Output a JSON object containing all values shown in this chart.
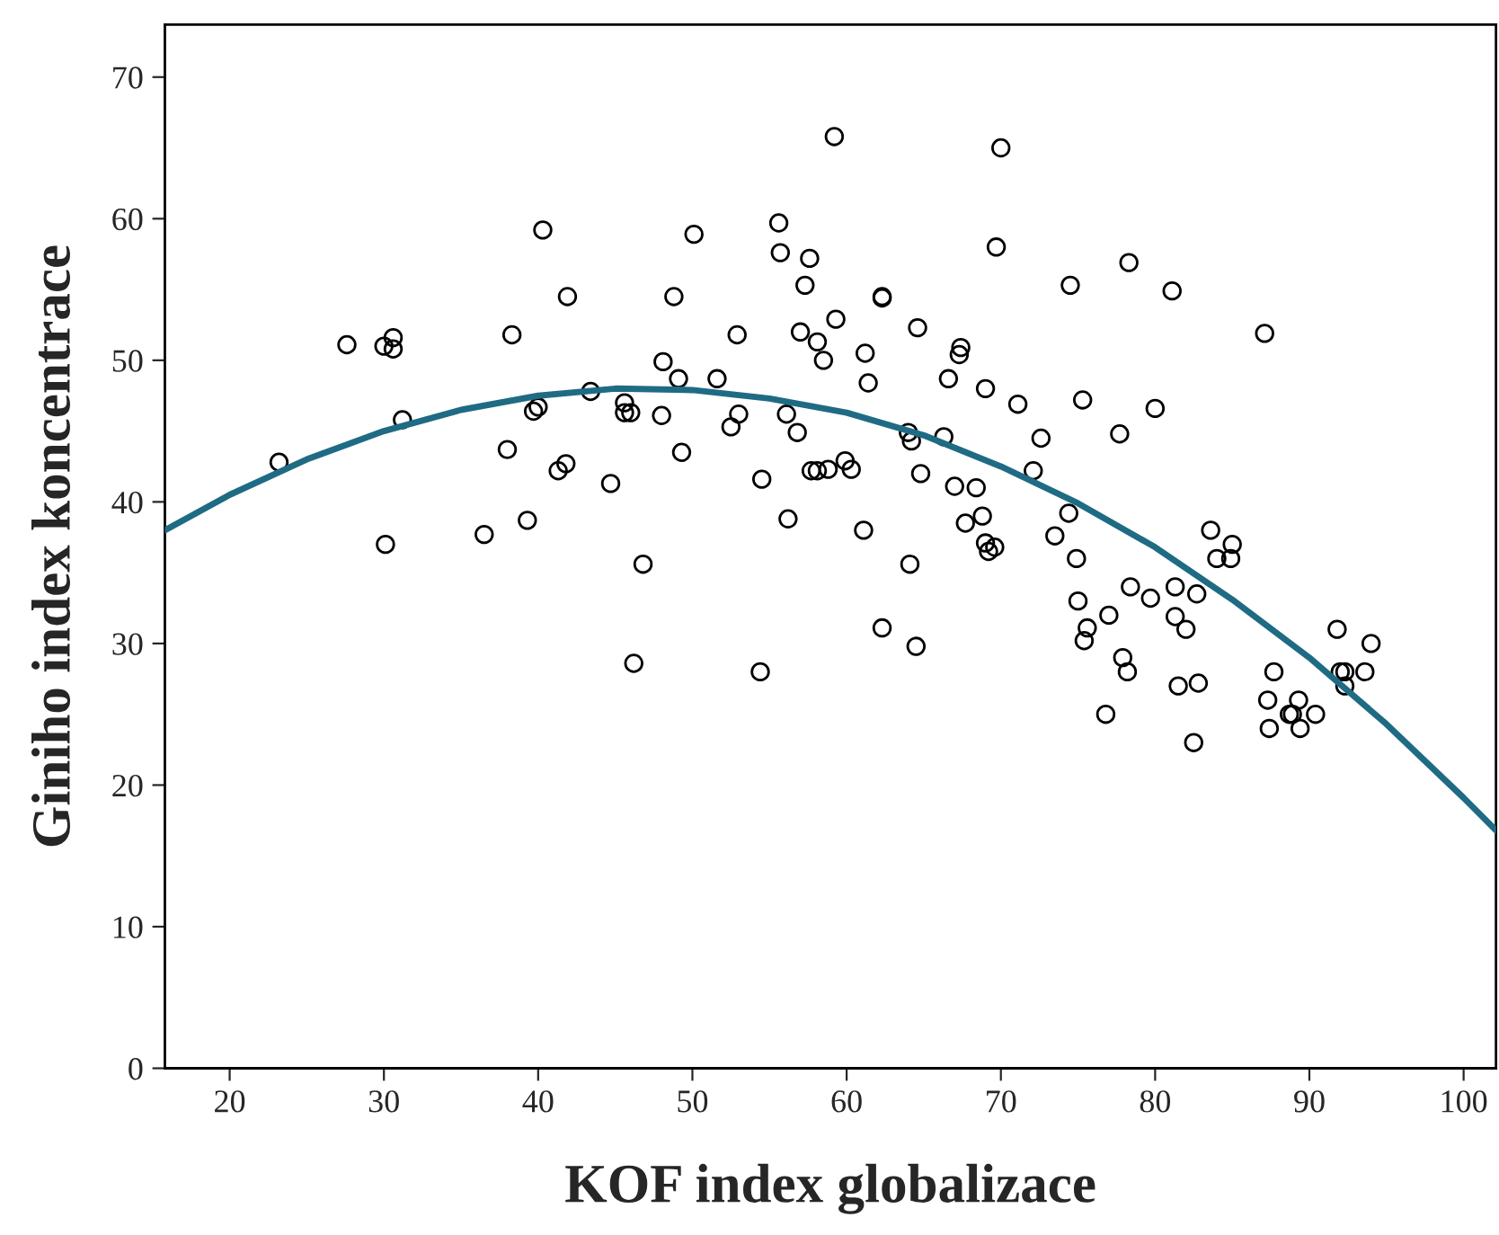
{
  "chart_data": {
    "type": "scatter",
    "xlabel": "KOF index globalizace",
    "ylabel": "Giniho index koncentrace",
    "xlim": [
      15.8,
      102.1
    ],
    "ylim": [
      0,
      73.7
    ],
    "xticks": [
      20,
      30,
      40,
      50,
      60,
      70,
      80,
      90,
      100
    ],
    "yticks": [
      0,
      10,
      20,
      30,
      40,
      50,
      60,
      70
    ],
    "grid": false,
    "legend": false,
    "series": [
      {
        "marker": "circle",
        "color": "#000000",
        "x": [
          23.2,
          27.6,
          30.0,
          30.6,
          30.6,
          30.1,
          31.2,
          36.5,
          38.0,
          38.3,
          39.3,
          39.7,
          40.0,
          40.3,
          41.3,
          41.8,
          41.9,
          43.4,
          44.7,
          45.6,
          45.6,
          46.0,
          46.2,
          46.8,
          48.0,
          48.1,
          48.8,
          49.1,
          49.3,
          50.1,
          51.6,
          52.5,
          52.9,
          53.0,
          54.4,
          54.5,
          55.6,
          55.7,
          56.1,
          56.2,
          56.8,
          57.0,
          57.3,
          57.6,
          57.7,
          58.1,
          58.1,
          58.5,
          58.8,
          59.2,
          59.3,
          59.9,
          60.3,
          61.1,
          61.2,
          61.4,
          62.3,
          62.3,
          62.3,
          64.0,
          64.1,
          64.2,
          64.5,
          64.6,
          64.8,
          66.3,
          66.6,
          67.0,
          67.3,
          67.4,
          67.7,
          68.4,
          68.8,
          69.0,
          69.0,
          69.2,
          69.6,
          69.7,
          70.0,
          71.1,
          72.1,
          72.6,
          73.5,
          74.4,
          74.5,
          74.9,
          75.0,
          75.3,
          75.4,
          75.6,
          76.8,
          77.0,
          77.7,
          77.9,
          78.2,
          78.3,
          78.4,
          79.7,
          80.0,
          81.1,
          81.3,
          81.3,
          81.5,
          82.0,
          82.5,
          82.7,
          82.8,
          83.6,
          84.0,
          84.9,
          85.0,
          87.1,
          87.3,
          87.4,
          87.7,
          88.7,
          88.9,
          89.3,
          89.4,
          90.4,
          91.8,
          92.0,
          92.3,
          92.3,
          93.6,
          94.0
        ],
        "values": [
          42.8,
          51.1,
          51.0,
          51.6,
          50.8,
          37.0,
          45.8,
          37.7,
          43.7,
          51.8,
          38.7,
          46.4,
          46.7,
          59.2,
          42.2,
          42.7,
          54.5,
          47.8,
          41.3,
          46.3,
          47.0,
          46.3,
          28.6,
          35.6,
          46.1,
          49.9,
          54.5,
          48.7,
          43.5,
          58.9,
          48.7,
          45.3,
          51.8,
          46.2,
          28.0,
          41.6,
          59.7,
          57.6,
          46.2,
          38.8,
          44.9,
          52.0,
          55.3,
          57.2,
          42.2,
          51.3,
          42.2,
          50.0,
          42.3,
          65.8,
          52.9,
          42.9,
          42.3,
          38.0,
          50.5,
          48.4,
          31.1,
          54.4,
          54.5,
          44.9,
          35.6,
          44.3,
          29.8,
          52.3,
          42.0,
          44.6,
          48.7,
          41.1,
          50.4,
          50.9,
          38.5,
          41.0,
          39.0,
          48.0,
          37.1,
          36.5,
          36.8,
          58.0,
          65.0,
          46.9,
          42.2,
          44.5,
          37.6,
          39.2,
          55.3,
          36.0,
          33.0,
          47.2,
          30.2,
          31.1,
          25.0,
          32.0,
          44.8,
          29.0,
          28.0,
          56.9,
          34.0,
          33.2,
          46.6,
          54.9,
          34.0,
          31.9,
          27.0,
          31.0,
          23.0,
          33.5,
          27.2,
          38.0,
          36.0,
          36.0,
          37.0,
          51.9,
          26.0,
          24.0,
          28.0,
          25.0,
          25.0,
          26.0,
          24.0,
          25.0,
          31.0,
          28.0,
          27.0,
          28.0,
          28.0,
          30.0
        ]
      },
      {
        "type": "line",
        "marker": "none",
        "color": "#1f6b84",
        "x": [
          15.8,
          20,
          25,
          30,
          35,
          40,
          45,
          50,
          55,
          60,
          65,
          70,
          75,
          80,
          85,
          90,
          95,
          100,
          102.1
        ],
        "values": [
          38.0,
          40.5,
          43.0,
          45.0,
          46.5,
          47.5,
          48.0,
          47.9,
          47.3,
          46.3,
          44.7,
          42.5,
          39.9,
          36.8,
          33.1,
          29.0,
          24.3,
          19.1,
          16.8
        ]
      }
    ]
  }
}
